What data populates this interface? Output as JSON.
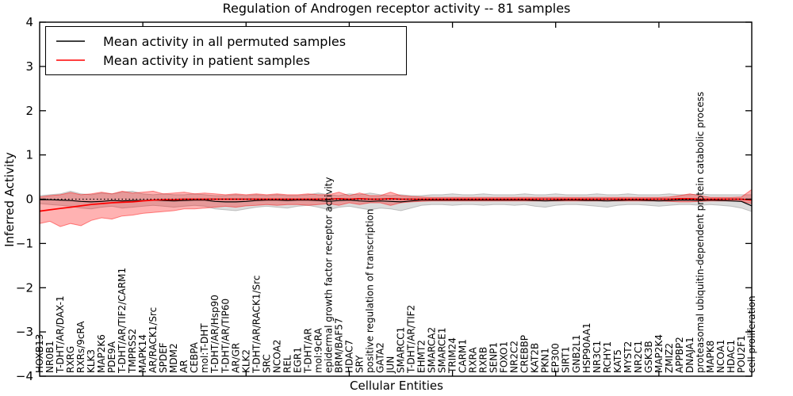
{
  "chart_data": {
    "type": "line",
    "title": "Regulation of Androgen receptor activity -- 81 samples",
    "xlabel": "Cellular Entities",
    "ylabel": "Inferred Activity",
    "ylim": [
      -4,
      4
    ],
    "yticks": [
      -4,
      -3,
      -2,
      -1,
      0,
      1,
      2,
      3,
      4
    ],
    "xtick_positions": [
      10,
      20,
      30,
      40,
      50,
      60
    ],
    "grid": false,
    "legend_position": "upper left",
    "zero_line": {
      "style": "dotted",
      "color": "#000000",
      "y": 0
    },
    "categories": [
      "HOXB13",
      "NR0B1",
      "T-DHT/AR/DAX-1",
      "RXRG",
      "RXRs/9cRA",
      "KLK3",
      "MAP2K6",
      "PDE9A",
      "T-DHT/AR/TIF2/CARM1",
      "TMPRSS2",
      "MAPK14",
      "AR/RACK1/Src",
      "SPDEF",
      "MDM2",
      "AR",
      "CEBPA",
      "mol:T-DHT",
      "T-DHT/AR/Hsp90",
      "T-DHT/AR/TIP60",
      "AR/GR",
      "KLK2",
      "T-DHT/AR/RACK1/Src",
      "SRC",
      "NCOA2",
      "REL",
      "EGR1",
      "T-DHT/AR",
      "mol:9cRA",
      "epidermal growth factor receptor activity",
      "BRM/BAF57",
      "HDAC7",
      "SRY",
      "positive regulation of transcription",
      "GATA2",
      "JUN",
      "SMARCC1",
      "T-DHT/AR/TIF2",
      "EHMT2",
      "SMARCA2",
      "SMARCE1",
      "TRIM24",
      "CARM1",
      "RXRA",
      "RXRB",
      "SENP1",
      "FOXO1",
      "NR2C2",
      "CREBBP",
      "KAT2B",
      "PKN1",
      "EP300",
      "SIRT1",
      "GNB2L1",
      "HSP90AA1",
      "NR3C1",
      "RCHY1",
      "KAT5",
      "MYST2",
      "NR2C1",
      "GSK3B",
      "MAP2K4",
      "ZMIZ2",
      "APPBP2",
      "DNAJA1",
      "proteasomal ubiquitin-dependent protein catabolic process",
      "MAPK8",
      "NCOA1",
      "HDAC1",
      "POU2F1",
      "cell proliferation"
    ],
    "series": [
      {
        "name": "Mean activity in all permuted samples",
        "color": "#000000",
        "values": [
          -0.01,
          -0.01,
          -0.02,
          -0.03,
          -0.05,
          -0.06,
          -0.05,
          -0.03,
          -0.04,
          -0.03,
          -0.03,
          -0.02,
          -0.03,
          -0.04,
          -0.03,
          -0.02,
          -0.02,
          -0.05,
          -0.06,
          -0.06,
          -0.05,
          -0.03,
          -0.02,
          -0.02,
          -0.03,
          -0.02,
          -0.02,
          -0.03,
          -0.05,
          -0.03,
          -0.02,
          -0.04,
          -0.05,
          -0.04,
          -0.05,
          -0.06,
          -0.04,
          -0.02,
          -0.02,
          -0.02,
          -0.02,
          -0.02,
          -0.02,
          -0.02,
          -0.02,
          -0.02,
          -0.02,
          -0.02,
          -0.03,
          -0.04,
          -0.03,
          -0.02,
          -0.02,
          -0.03,
          -0.03,
          -0.04,
          -0.03,
          -0.02,
          -0.02,
          -0.03,
          -0.04,
          -0.03,
          -0.02,
          -0.02,
          -0.03,
          -0.02,
          -0.03,
          -0.04,
          -0.05,
          -0.15
        ]
      },
      {
        "name": "Mean activity in patient samples",
        "color": "#ff0000",
        "values": [
          -0.27,
          -0.24,
          -0.21,
          -0.18,
          -0.15,
          -0.12,
          -0.1,
          -0.08,
          -0.07,
          -0.06,
          -0.04,
          -0.02,
          -0.01,
          -0.01,
          0.0,
          0.0,
          0.0,
          0.0,
          0.0,
          0.0,
          0.0,
          0.0,
          0.0,
          0.0,
          0.0,
          0.0,
          0.0,
          0.0,
          0.0,
          0.01,
          0.0,
          0.01,
          0.0,
          0.0,
          0.01,
          0.0,
          0.0,
          0.0,
          0.0,
          0.0,
          0.0,
          0.0,
          0.0,
          0.0,
          0.0,
          0.0,
          0.0,
          0.0,
          0.0,
          0.0,
          0.0,
          0.0,
          0.0,
          0.0,
          0.0,
          0.0,
          0.0,
          0.0,
          0.0,
          0.0,
          0.0,
          0.0,
          0.01,
          0.01,
          0.0,
          0.0,
          0.0,
          0.0,
          0.0,
          -0.02
        ]
      }
    ],
    "bands": [
      {
        "name": "permuted samples range",
        "color": "#808080",
        "opacity": 0.28,
        "hi": [
          0.08,
          0.1,
          0.12,
          0.18,
          0.12,
          0.1,
          0.14,
          0.12,
          0.16,
          0.18,
          0.12,
          0.1,
          0.12,
          0.1,
          0.1,
          0.12,
          0.1,
          0.08,
          0.08,
          0.1,
          0.08,
          0.1,
          0.08,
          0.1,
          0.08,
          0.08,
          0.1,
          0.14,
          0.1,
          0.08,
          0.12,
          0.1,
          0.14,
          0.1,
          0.08,
          0.1,
          0.08,
          0.08,
          0.1,
          0.1,
          0.12,
          0.1,
          0.1,
          0.12,
          0.1,
          0.1,
          0.1,
          0.12,
          0.1,
          0.1,
          0.12,
          0.1,
          0.1,
          0.1,
          0.12,
          0.1,
          0.1,
          0.12,
          0.1,
          0.1,
          0.1,
          0.12,
          0.1,
          0.1,
          0.12,
          0.1,
          0.1,
          0.1,
          0.1,
          0.1
        ],
        "lo": [
          -0.1,
          -0.12,
          -0.14,
          -0.16,
          -0.2,
          -0.22,
          -0.18,
          -0.16,
          -0.2,
          -0.18,
          -0.16,
          -0.14,
          -0.16,
          -0.18,
          -0.16,
          -0.14,
          -0.16,
          -0.22,
          -0.24,
          -0.26,
          -0.22,
          -0.18,
          -0.16,
          -0.18,
          -0.2,
          -0.16,
          -0.14,
          -0.18,
          -0.24,
          -0.18,
          -0.16,
          -0.2,
          -0.24,
          -0.2,
          -0.22,
          -0.26,
          -0.2,
          -0.14,
          -0.12,
          -0.12,
          -0.14,
          -0.12,
          -0.12,
          -0.14,
          -0.12,
          -0.12,
          -0.14,
          -0.12,
          -0.16,
          -0.18,
          -0.14,
          -0.12,
          -0.12,
          -0.14,
          -0.16,
          -0.18,
          -0.14,
          -0.12,
          -0.12,
          -0.14,
          -0.16,
          -0.14,
          -0.12,
          -0.12,
          -0.14,
          -0.12,
          -0.14,
          -0.16,
          -0.2,
          -0.28
        ]
      },
      {
        "name": "patient samples range",
        "color": "#ff0000",
        "opacity": 0.3,
        "hi": [
          0.05,
          0.08,
          0.1,
          0.15,
          0.1,
          0.12,
          0.16,
          0.12,
          0.18,
          0.14,
          0.16,
          0.18,
          0.12,
          0.14,
          0.16,
          0.12,
          0.14,
          0.12,
          0.1,
          0.12,
          0.1,
          0.12,
          0.1,
          0.12,
          0.1,
          0.1,
          0.12,
          0.1,
          0.1,
          0.16,
          0.08,
          0.14,
          0.08,
          0.08,
          0.16,
          0.08,
          0.06,
          0.05,
          0.04,
          0.04,
          0.04,
          0.04,
          0.04,
          0.04,
          0.04,
          0.04,
          0.04,
          0.04,
          0.04,
          0.04,
          0.04,
          0.04,
          0.04,
          0.04,
          0.04,
          0.04,
          0.04,
          0.04,
          0.04,
          0.04,
          0.04,
          0.05,
          0.08,
          0.12,
          0.08,
          0.04,
          0.04,
          0.04,
          0.05,
          0.22
        ],
        "lo": [
          -0.55,
          -0.5,
          -0.62,
          -0.55,
          -0.6,
          -0.48,
          -0.42,
          -0.45,
          -0.38,
          -0.36,
          -0.32,
          -0.3,
          -0.28,
          -0.26,
          -0.22,
          -0.22,
          -0.2,
          -0.18,
          -0.16,
          -0.18,
          -0.15,
          -0.14,
          -0.12,
          -0.14,
          -0.12,
          -0.12,
          -0.14,
          -0.12,
          -0.1,
          -0.14,
          -0.08,
          -0.12,
          -0.08,
          -0.08,
          -0.14,
          -0.08,
          -0.06,
          -0.05,
          -0.04,
          -0.04,
          -0.04,
          -0.04,
          -0.04,
          -0.04,
          -0.04,
          -0.04,
          -0.04,
          -0.04,
          -0.04,
          -0.04,
          -0.04,
          -0.04,
          -0.04,
          -0.04,
          -0.04,
          -0.04,
          -0.04,
          -0.04,
          -0.04,
          -0.04,
          -0.04,
          -0.05,
          -0.06,
          -0.06,
          -0.05,
          -0.04,
          -0.04,
          -0.04,
          -0.05,
          -0.1
        ]
      }
    ]
  },
  "colors": {
    "frame": "#000000",
    "background": "#ffffff",
    "permuted_line": "#000000",
    "patient_line": "#ff0000"
  }
}
